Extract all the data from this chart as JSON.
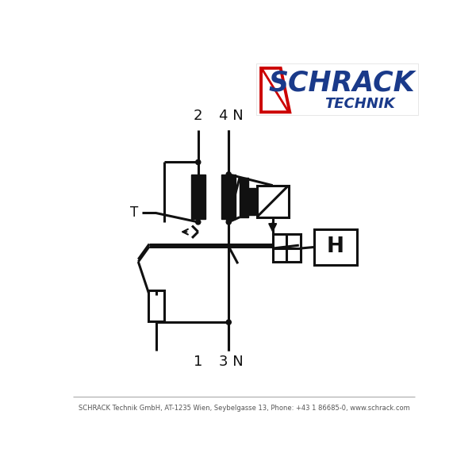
{
  "bg_color": "white",
  "lc": "#111111",
  "logo_blue": "#1a3a8a",
  "logo_red": "#cc0000",
  "footer": "SCHRACK Technik GmbH, AT-1235 Wien, Seybelgasse 13, Phone: +43 1 86685-0, www.schrack.com",
  "lbl_2": "2",
  "lbl_4N": "4 N",
  "lbl_1": "1",
  "lbl_3N": "3 N",
  "lbl_T": "T",
  "lbl_H": "H"
}
